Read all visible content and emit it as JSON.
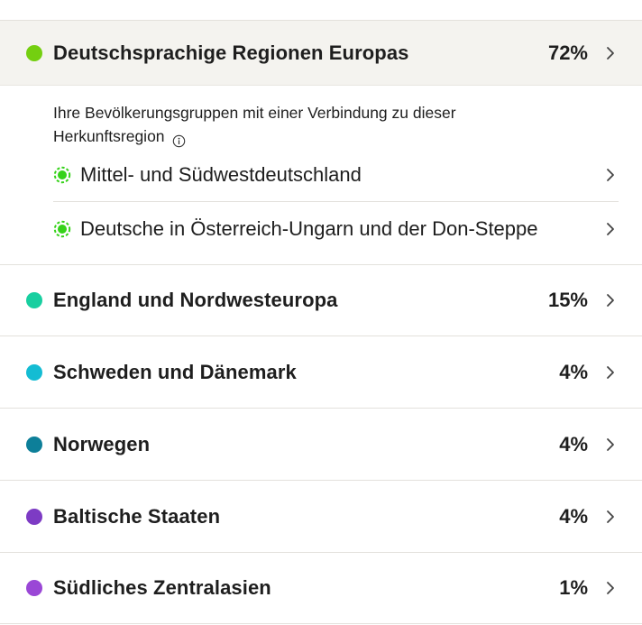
{
  "regions": [
    {
      "name": "Deutschsprachige Regionen Europas",
      "percent": "72%",
      "color": "#74cf10"
    },
    {
      "name": "England und Nordwesteuropa",
      "percent": "15%",
      "color": "#18cfa0"
    },
    {
      "name": "Schweden und Dänemark",
      "percent": "4%",
      "color": "#14bcd3"
    },
    {
      "name": "Norwegen",
      "percent": "4%",
      "color": "#0d7f99"
    },
    {
      "name": "Baltische Staaten",
      "percent": "4%",
      "color": "#7d3bc4"
    },
    {
      "name": "Südliches Zentralasien",
      "percent": "1%",
      "color": "#9a47d6"
    }
  ],
  "detail": {
    "intro": "Ihre Bevölkerungsgruppen mit einer Verbindung zu dieser Herkunftsregion",
    "communities": [
      {
        "label": "Mittel- und Südwestdeutschland",
        "color": "#35d219"
      },
      {
        "label": "Deutsche in Österreich-Ungarn und der Don-Steppe",
        "color": "#35d219"
      }
    ]
  }
}
